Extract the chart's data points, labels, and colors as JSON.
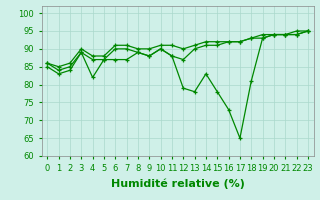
{
  "xlabel": "Humidité relative (%)",
  "xlim": [
    -0.5,
    23.5
  ],
  "ylim": [
    60,
    102
  ],
  "yticks": [
    60,
    65,
    70,
    75,
    80,
    85,
    90,
    95,
    100
  ],
  "xticks": [
    0,
    1,
    2,
    3,
    4,
    5,
    6,
    7,
    8,
    9,
    10,
    11,
    12,
    13,
    14,
    15,
    16,
    17,
    18,
    19,
    20,
    21,
    22,
    23
  ],
  "bg_color": "#cff0e8",
  "line_color": "#008800",
  "grid_color": "#aad8cc",
  "series": [
    [
      85,
      83,
      84,
      89,
      82,
      87,
      87,
      87,
      89,
      88,
      90,
      88,
      79,
      78,
      83,
      78,
      73,
      65,
      81,
      93,
      94,
      94,
      95,
      95
    ],
    [
      86,
      84,
      85,
      89,
      87,
      87,
      90,
      90,
      89,
      88,
      90,
      88,
      87,
      90,
      91,
      91,
      92,
      92,
      93,
      93,
      94,
      94,
      94,
      95
    ],
    [
      86,
      85,
      86,
      90,
      88,
      88,
      91,
      91,
      90,
      90,
      91,
      91,
      90,
      91,
      92,
      92,
      92,
      92,
      93,
      94,
      94,
      94,
      94,
      95
    ]
  ],
  "xlabel_fontsize": 8,
  "tick_fontsize": 6,
  "xlabel_fontweight": "bold"
}
